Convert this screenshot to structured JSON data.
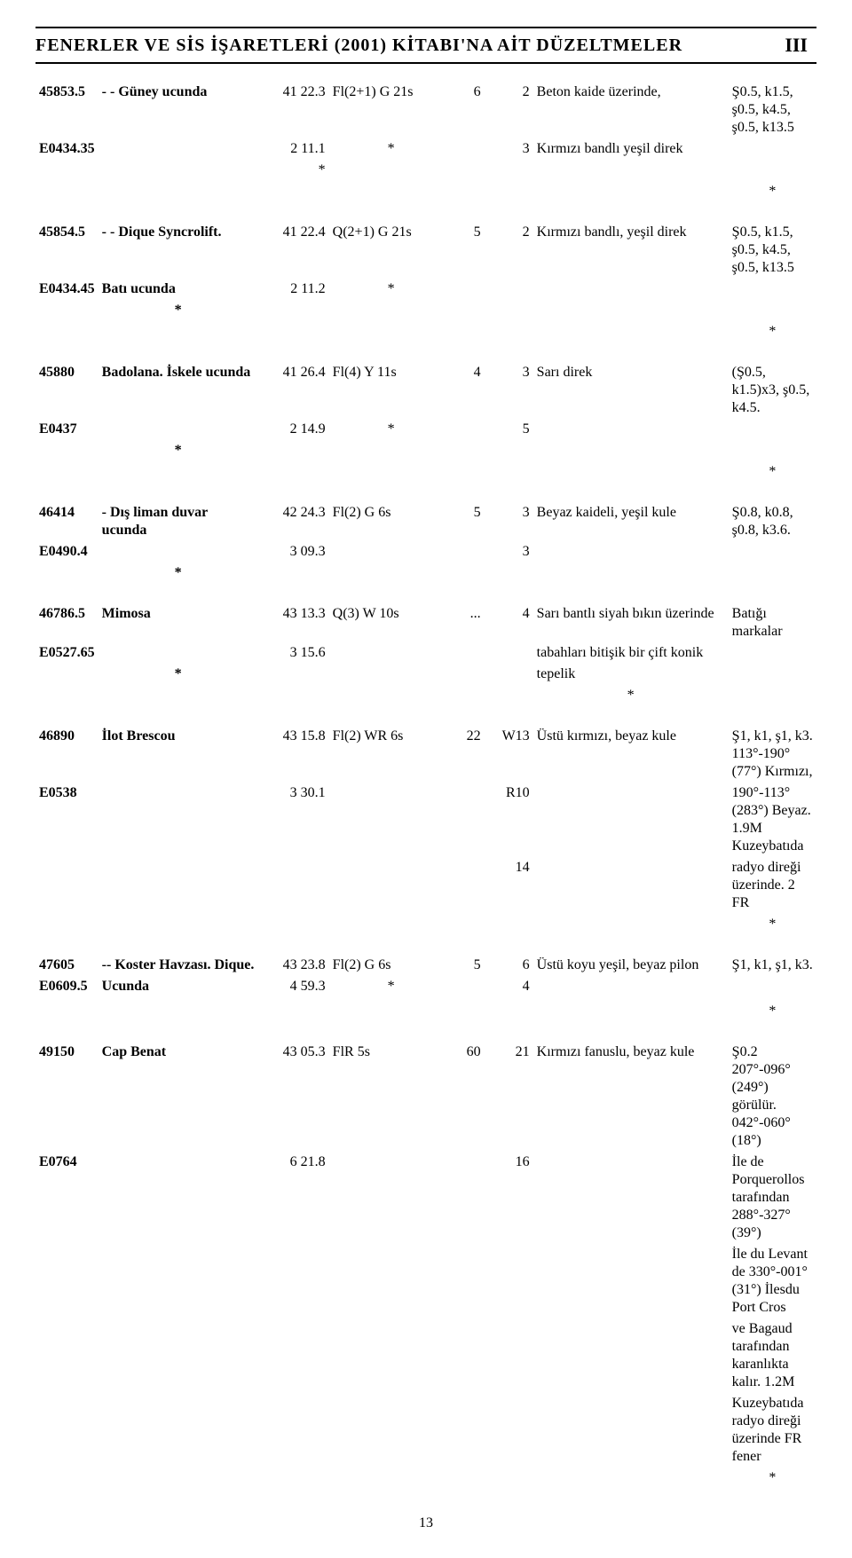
{
  "header": {
    "title": "FENERLER VE SİS İŞARETLERİ (2001) KİTABI'NA AİT DÜZELTMELER",
    "section_roman": "III"
  },
  "page_number": "13",
  "entries": [
    {
      "num_top": "45853.5",
      "num_bot": "E0434.35",
      "name_l1": "- - Güney ucunda",
      "name_l2": "",
      "name_ast": "",
      "lat": "41 22.3",
      "lon": "2 11.1",
      "pos_ast": "*",
      "char": "Fl(2+1) G 21s",
      "char_ast": "*",
      "height": "6",
      "range_l1": "2",
      "range_l2": "3",
      "range_l3": "",
      "struct_l1": "Beton kaide üzerinde,",
      "struct_l2": "Kırmızı bandlı yeşil direk",
      "struct_l3": "",
      "remark_l1": "Ş0.5, k1.5, ş0.5, k4.5, ş0.5, k13.5",
      "remark_l2": "",
      "remark_l3": "",
      "remark_l4": "",
      "remark_l5": "",
      "remark_ast": "*"
    },
    {
      "num_top": "45854.5",
      "num_bot": "E0434.45",
      "name_l1": "- - Dique Syncrolift.",
      "name_l2": "Batı ucunda",
      "name_ast": "*",
      "lat": "41 22.4",
      "lon": "2 11.2",
      "pos_ast": "",
      "char": "Q(2+1) G 21s",
      "char_ast": "*",
      "height": "5",
      "range_l1": "2",
      "range_l2": "",
      "range_l3": "",
      "struct_l1": "Kırmızı bandlı, yeşil direk",
      "struct_l2": "",
      "struct_l3": "",
      "remark_l1": "Ş0.5, k1.5, ş0.5, k4.5, ş0.5, k13.5",
      "remark_l2": "",
      "remark_l3": "",
      "remark_l4": "",
      "remark_l5": "",
      "remark_ast": "*"
    },
    {
      "num_top": "45880",
      "num_bot": "E0437",
      "name_l1": "Badolana. İskele ucunda",
      "name_l2": "",
      "name_ast": "*",
      "lat": "41 26.4",
      "lon": "2 14.9",
      "pos_ast": "",
      "char": "Fl(4) Y 11s",
      "char_ast": "*",
      "height": "4",
      "range_l1": "3",
      "range_l2": "5",
      "range_l3": "",
      "struct_l1": "Sarı direk",
      "struct_l2": "",
      "struct_l3": "",
      "remark_l1": "(Ş0.5, k1.5)x3, ş0.5, k4.5.",
      "remark_l2": "",
      "remark_l3": "",
      "remark_l4": "",
      "remark_l5": "",
      "remark_ast": "*"
    },
    {
      "num_top": "46414",
      "num_bot": "E0490.4",
      "name_l1": "- Dış liman duvar ucunda",
      "name_l2": "",
      "name_ast": "*",
      "lat": "42 24.3",
      "lon": "3 09.3",
      "pos_ast": "",
      "char": "Fl(2) G 6s",
      "char_ast": "",
      "height": "5",
      "range_l1": "3",
      "range_l2": "3",
      "range_l3": "",
      "struct_l1": "Beyaz kaideli, yeşil kule",
      "struct_l2": "",
      "struct_l3": "",
      "remark_l1": "Ş0.8, k0.8, ş0.8, k3.6.",
      "remark_l2": "",
      "remark_l3": "",
      "remark_l4": "",
      "remark_l5": "",
      "remark_ast": ""
    },
    {
      "num_top": "46786.5",
      "num_bot": "E0527.65",
      "name_l1": "Mimosa",
      "name_l2": "",
      "name_ast": "*",
      "lat": "43 13.3",
      "lon": "3 15.6",
      "pos_ast": "",
      "char": "Q(3) W 10s",
      "char_ast": "",
      "height": "...",
      "range_l1": "4",
      "range_l2": "",
      "range_l3": "",
      "struct_l1": "Sarı bantlı siyah bıkın üzerinde",
      "struct_l2": "tabahları bitişik bir çift konik",
      "struct_l3": "tepelik",
      "struct_ast": "*",
      "remark_l1": "Batığı markalar",
      "remark_l2": "",
      "remark_l3": "",
      "remark_l4": "",
      "remark_l5": "",
      "remark_ast": ""
    },
    {
      "num_top": "46890",
      "num_bot": "E0538",
      "name_l1": "İlot Brescou",
      "name_l2": "",
      "name_ast": "",
      "lat": "43 15.8",
      "lon": "3 30.1",
      "pos_ast": "",
      "char": "Fl(2) WR 6s",
      "char_ast": "",
      "height": "22",
      "range_l1": "W13",
      "range_l2": "R10",
      "range_l3": "14",
      "struct_l1": "Üstü kırmızı, beyaz kule",
      "struct_l2": "",
      "struct_l3": "",
      "remark_l1": "Ş1, k1, ş1, k3. 113°-190°(77°) Kırmızı,",
      "remark_l2": "190°-113°(283°) Beyaz. 1.9M Kuzeybatıda",
      "remark_l3": "radyo direği üzerinde. 2 FR",
      "remark_l4": "",
      "remark_l5": "",
      "remark_ast": "*"
    },
    {
      "num_top": "47605",
      "num_bot": "E0609.5",
      "name_l1": "-- Koster Havzası. Dique.",
      "name_l2": "Ucunda",
      "name_ast": "",
      "lat": "43 23.8",
      "lon": "4 59.3",
      "pos_ast": "",
      "char": "Fl(2) G 6s",
      "char_ast": "*",
      "height": "5",
      "range_l1": "6",
      "range_l2": "4",
      "range_l3": "",
      "struct_l1": "Üstü koyu yeşil, beyaz pilon",
      "struct_l2": "",
      "struct_l3": "",
      "remark_l1": "Ş1, k1, ş1, k3.",
      "remark_l2": "",
      "remark_l3": "",
      "remark_l4": "",
      "remark_l5": "",
      "remark_ast": "*"
    },
    {
      "num_top": "49150",
      "num_bot": "E0764",
      "name_l1": "Cap Benat",
      "name_l2": "",
      "name_ast": "",
      "lat": "43 05.3",
      "lon": "6 21.8",
      "pos_ast": "",
      "char": "FlR 5s",
      "char_ast": "",
      "height": "60",
      "range_l1": "21",
      "range_l2": "16",
      "range_l3": "",
      "struct_l1": "Kırmızı fanuslu, beyaz kule",
      "struct_l2": "",
      "struct_l3": "",
      "remark_l1": "Ş0.2 207°-096°(249°) görülür. 042°-060°(18°)",
      "remark_l2": "İle de Porquerollos tarafından 288°-327°(39°)",
      "remark_l3": "İle du Levant de 330°-001°(31°) İlesdu Port Cros",
      "remark_l4": "ve Bagaud tarafından karanlıkta kalır. 1.2M",
      "remark_l5": "Kuzeybatıda radyo direği üzerinde FR fener",
      "remark_ast": "*"
    }
  ]
}
